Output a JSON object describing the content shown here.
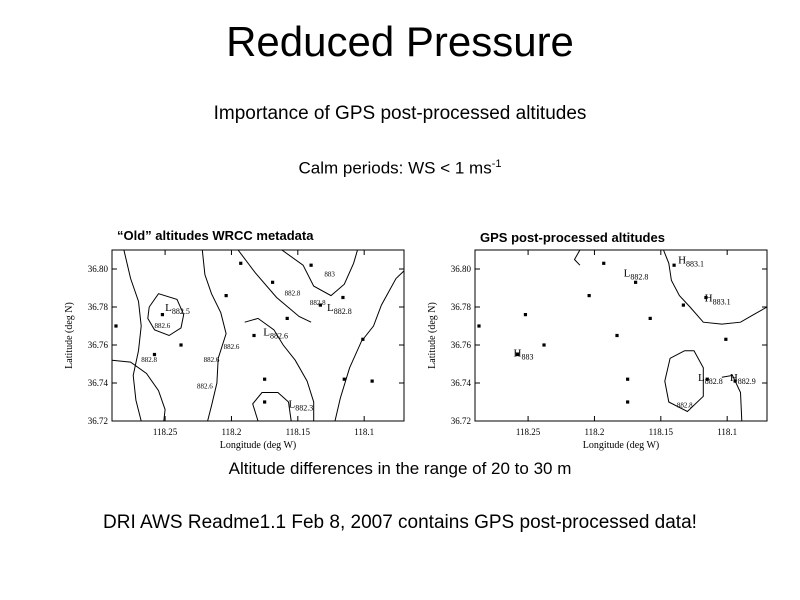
{
  "slide": {
    "title": "Reduced Pressure",
    "subtitle": "Importance of GPS post-processed altitudes",
    "calm_text": "Calm periods: WS < 1 ms",
    "calm_exponent": "-1",
    "note": "Altitude differences in the range of 20 to 30 m",
    "footer": "DRI AWS Readme1.1 Feb 8, 2007 contains GPS post-processed data!"
  },
  "chart_data": [
    {
      "type": "scatter",
      "subtype": "contour-map",
      "title": "“Old” altitudes WRCC metadata",
      "xlabel": "Longitude (deg W)",
      "ylabel": "Latitude (deg N)",
      "xlim": [
        118.29,
        118.07
      ],
      "ylim": [
        36.72,
        36.81
      ],
      "x_ticks": [
        "118.25",
        "118.2",
        "118.15",
        "118.1"
      ],
      "x_tick_values": [
        118.25,
        118.2,
        118.15,
        118.1
      ],
      "y_ticks": [
        "36.80",
        "36.78",
        "36.76",
        "36.74",
        "36.72"
      ],
      "y_tick_values": [
        36.8,
        36.78,
        36.76,
        36.74,
        36.72
      ],
      "stations": [
        {
          "x": 118.287,
          "y": 36.77
        },
        {
          "x": 118.258,
          "y": 36.755
        },
        {
          "x": 118.252,
          "y": 36.776
        },
        {
          "x": 118.238,
          "y": 36.76
        },
        {
          "x": 118.204,
          "y": 36.786
        },
        {
          "x": 118.193,
          "y": 36.803
        },
        {
          "x": 118.183,
          "y": 36.765
        },
        {
          "x": 118.175,
          "y": 36.742
        },
        {
          "x": 118.169,
          "y": 36.793
        },
        {
          "x": 118.158,
          "y": 36.774
        },
        {
          "x": 118.14,
          "y": 36.802
        },
        {
          "x": 118.133,
          "y": 36.781
        },
        {
          "x": 118.116,
          "y": 36.785
        },
        {
          "x": 118.101,
          "y": 36.763
        },
        {
          "x": 118.094,
          "y": 36.741
        },
        {
          "x": 118.115,
          "y": 36.742
        },
        {
          "x": 118.175,
          "y": 36.73
        }
      ],
      "extrema_labels": [
        {
          "letter": "L",
          "value": "882.5",
          "x": 118.25,
          "y": 36.778
        },
        {
          "letter": "L",
          "value": "882.6",
          "x": 118.176,
          "y": 36.765
        },
        {
          "letter": "L",
          "value": "882.3",
          "x": 118.157,
          "y": 36.727
        },
        {
          "letter": "L",
          "value": "882.8",
          "x": 118.128,
          "y": 36.778
        }
      ],
      "contour_labels": [
        {
          "text": "882.6",
          "x": 118.252,
          "y": 36.769
        },
        {
          "text": "882.8",
          "x": 118.262,
          "y": 36.751
        },
        {
          "text": "882.8",
          "x": 118.154,
          "y": 36.786
        },
        {
          "text": "882.8",
          "x": 118.135,
          "y": 36.781
        },
        {
          "text": "883",
          "x": 118.126,
          "y": 36.796
        },
        {
          "text": "882.6",
          "x": 118.2,
          "y": 36.758
        },
        {
          "text": "882.6",
          "x": 118.22,
          "y": 36.737
        },
        {
          "text": "882.6",
          "x": 118.215,
          "y": 36.751
        }
      ],
      "contours": [
        [
          [
            118.281,
            36.81
          ],
          [
            118.276,
            36.795
          ],
          [
            118.27,
            36.783
          ],
          [
            118.268,
            36.77
          ],
          [
            118.27,
            36.757
          ],
          [
            118.274,
            36.744
          ],
          [
            118.272,
            36.731
          ],
          [
            118.268,
            36.72
          ]
        ],
        [
          [
            118.262,
            36.78
          ],
          [
            118.255,
            36.787
          ],
          [
            118.241,
            36.784
          ],
          [
            118.236,
            36.776
          ],
          [
            118.238,
            36.769
          ],
          [
            118.247,
            36.765
          ],
          [
            118.258,
            36.768
          ],
          [
            118.263,
            36.774
          ],
          [
            118.262,
            36.78
          ]
        ],
        [
          [
            118.29,
            36.752
          ],
          [
            118.276,
            36.751
          ],
          [
            118.264,
            36.745
          ],
          [
            118.255,
            36.736
          ],
          [
            118.25,
            36.726
          ],
          [
            118.251,
            36.72
          ]
        ],
        [
          [
            118.222,
            36.81
          ],
          [
            118.22,
            36.797
          ],
          [
            118.215,
            36.787
          ],
          [
            118.208,
            36.777
          ],
          [
            118.204,
            36.766
          ],
          [
            118.21,
            36.753
          ],
          [
            118.211,
            36.74
          ],
          [
            118.215,
            36.728
          ],
          [
            118.218,
            36.72
          ]
        ],
        [
          [
            118.195,
            36.81
          ],
          [
            118.182,
            36.798
          ],
          [
            118.166,
            36.785
          ],
          [
            118.149,
            36.775
          ],
          [
            118.14,
            36.772
          ]
        ],
        [
          [
            118.162,
            36.81
          ],
          [
            118.146,
            36.802
          ],
          [
            118.138,
            36.791
          ],
          [
            118.125,
            36.786
          ],
          [
            118.115,
            36.792
          ],
          [
            118.108,
            36.803
          ],
          [
            118.105,
            36.81
          ]
        ],
        [
          [
            118.18,
            36.72
          ],
          [
            118.184,
            36.729
          ],
          [
            118.177,
            36.735
          ],
          [
            118.165,
            36.735
          ],
          [
            118.157,
            36.73
          ],
          [
            118.155,
            36.72
          ]
        ],
        [
          [
            118.19,
            36.772
          ],
          [
            118.18,
            36.774
          ],
          [
            118.168,
            36.768
          ],
          [
            118.161,
            36.76
          ],
          [
            118.152,
            36.752
          ],
          [
            118.143,
            36.741
          ],
          [
            118.138,
            36.73
          ],
          [
            118.138,
            36.72
          ]
        ],
        [
          [
            118.122,
            36.72
          ],
          [
            118.118,
            36.732
          ],
          [
            118.111,
            36.748
          ],
          [
            118.102,
            36.762
          ],
          [
            118.093,
            36.77
          ],
          [
            118.087,
            36.781
          ],
          [
            118.076,
            36.795
          ],
          [
            118.07,
            36.799
          ]
        ]
      ]
    },
    {
      "type": "scatter",
      "subtype": "contour-map",
      "title": "GPS post-processed altitudes",
      "xlabel": "Longitude (deg W)",
      "ylabel": "Latitude (deg N)",
      "xlim": [
        118.29,
        118.07
      ],
      "ylim": [
        36.72,
        36.81
      ],
      "x_ticks": [
        "118.25",
        "118.2",
        "118.15",
        "118.1"
      ],
      "x_tick_values": [
        118.25,
        118.2,
        118.15,
        118.1
      ],
      "y_ticks": [
        "36.80",
        "36.78",
        "36.76",
        "36.74",
        "36.72"
      ],
      "y_tick_values": [
        36.8,
        36.78,
        36.76,
        36.74,
        36.72
      ],
      "stations": [
        {
          "x": 118.287,
          "y": 36.77
        },
        {
          "x": 118.258,
          "y": 36.755
        },
        {
          "x": 118.252,
          "y": 36.776
        },
        {
          "x": 118.238,
          "y": 36.76
        },
        {
          "x": 118.204,
          "y": 36.786
        },
        {
          "x": 118.193,
          "y": 36.803
        },
        {
          "x": 118.183,
          "y": 36.765
        },
        {
          "x": 118.175,
          "y": 36.742
        },
        {
          "x": 118.169,
          "y": 36.793
        },
        {
          "x": 118.158,
          "y": 36.774
        },
        {
          "x": 118.14,
          "y": 36.802
        },
        {
          "x": 118.133,
          "y": 36.781
        },
        {
          "x": 118.116,
          "y": 36.785
        },
        {
          "x": 118.101,
          "y": 36.763
        },
        {
          "x": 118.094,
          "y": 36.741
        },
        {
          "x": 118.115,
          "y": 36.742
        },
        {
          "x": 118.175,
          "y": 36.73
        }
      ],
      "extrema_labels": [
        {
          "letter": "L",
          "value": "882.8",
          "x": 118.178,
          "y": 36.796
        },
        {
          "letter": "H",
          "value": "883.1",
          "x": 118.137,
          "y": 36.803
        },
        {
          "letter": "H",
          "value": "883.1",
          "x": 118.117,
          "y": 36.783
        },
        {
          "letter": "H",
          "value": "883",
          "x": 118.261,
          "y": 36.754
        },
        {
          "letter": "L",
          "value": "882.8",
          "x": 118.122,
          "y": 36.741
        },
        {
          "letter": "H",
          "value": "882.9",
          "x": 118.098,
          "y": 36.741
        }
      ],
      "contour_labels": [
        {
          "text": "882.8",
          "x": 118.132,
          "y": 36.727
        }
      ],
      "contours": [
        [
          [
            118.148,
            36.81
          ],
          [
            118.144,
            36.803
          ],
          [
            118.142,
            36.794
          ],
          [
            118.136,
            36.786
          ],
          [
            118.128,
            36.78
          ],
          [
            118.118,
            36.772
          ],
          [
            118.104,
            36.771
          ],
          [
            118.09,
            36.772
          ],
          [
            118.08,
            36.776
          ],
          [
            118.07,
            36.78
          ]
        ],
        [
          [
            118.132,
            36.757
          ],
          [
            118.143,
            36.753
          ],
          [
            118.147,
            36.741
          ],
          [
            118.144,
            36.73
          ],
          [
            118.13,
            36.725
          ],
          [
            118.118,
            36.733
          ],
          [
            118.118,
            36.748
          ],
          [
            118.125,
            36.757
          ],
          [
            118.132,
            36.757
          ]
        ],
        [
          [
            118.104,
            36.743
          ],
          [
            118.096,
            36.744
          ],
          [
            118.09,
            36.735
          ],
          [
            118.089,
            36.72
          ]
        ],
        [
          [
            118.211,
            36.81
          ],
          [
            118.215,
            36.805
          ],
          [
            118.211,
            36.802
          ]
        ]
      ]
    }
  ]
}
